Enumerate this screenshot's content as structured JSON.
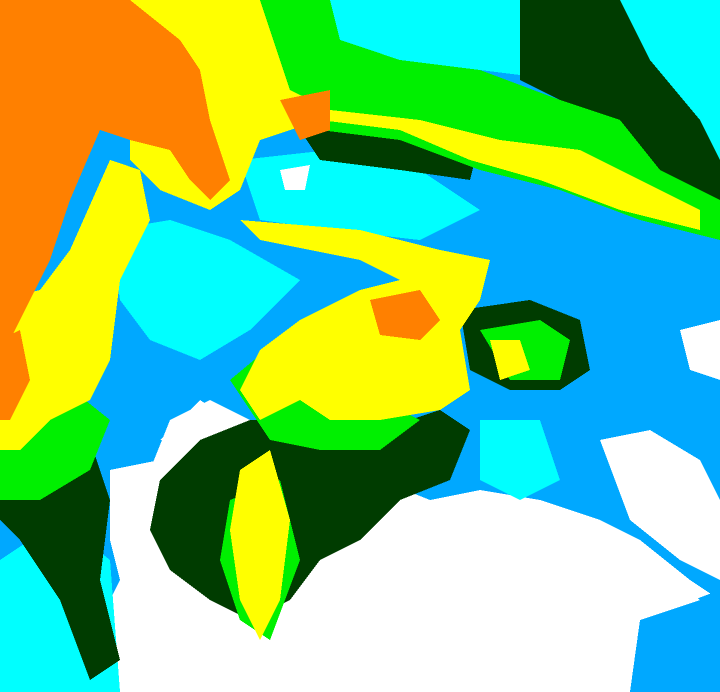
{
  "map": {
    "type": "classified radar / satellite intensity field",
    "palette": {
      "none": "#ffffff",
      "light_blue": "#00a8ff",
      "cyan": "#00ffff",
      "dark_green": "#003c00",
      "green": "#00f000",
      "yellow": "#ffff00",
      "orange": "#ff8000"
    }
  }
}
